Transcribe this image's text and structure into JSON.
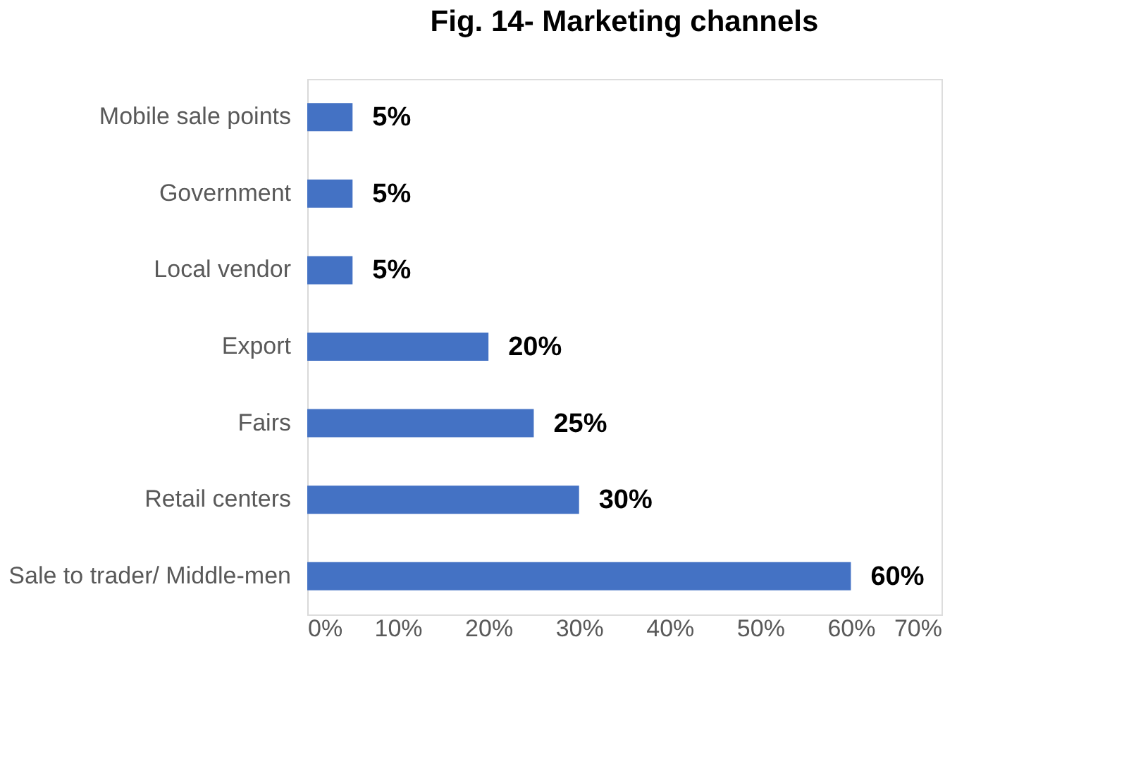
{
  "chart_data": {
    "type": "bar",
    "orientation": "horizontal",
    "title": "Fig. 14- Marketing channels",
    "categories": [
      "Mobile sale points",
      "Government",
      "Local vendor",
      "Export",
      "Fairs",
      "Retail centers",
      "Sale to trader/ Middle-men"
    ],
    "values": [
      5,
      5,
      5,
      20,
      25,
      30,
      60
    ],
    "value_labels": [
      "5%",
      "5%",
      "5%",
      "20%",
      "25%",
      "30%",
      "60%"
    ],
    "color": "#4472c4",
    "xlim": [
      0,
      70
    ],
    "xticks": [
      {
        "value": 0,
        "label": "0%"
      },
      {
        "value": 10,
        "label": "10%"
      },
      {
        "value": 20,
        "label": "20%"
      },
      {
        "value": 30,
        "label": "30%"
      },
      {
        "value": 40,
        "label": "40%"
      },
      {
        "value": 50,
        "label": "50%"
      },
      {
        "value": 60,
        "label": "60%"
      },
      {
        "value": 70,
        "label": "70%"
      }
    ],
    "grid": false
  }
}
